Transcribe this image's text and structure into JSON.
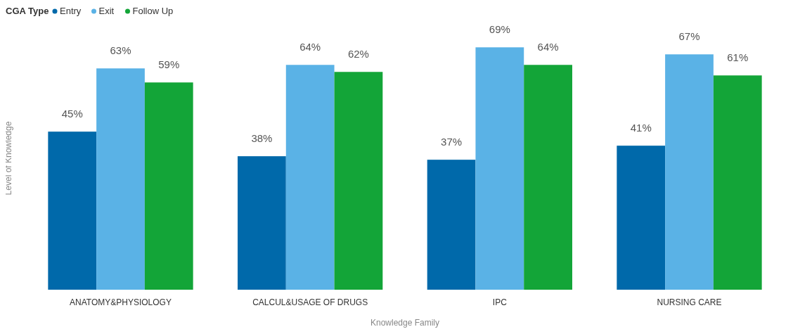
{
  "chart_data": {
    "type": "bar",
    "legend_title": "CGA Type",
    "xlabel": "Knowledge Family",
    "ylabel": "Level of Knowledge",
    "categories": [
      "ANATOMY&PHYSIOLOGY",
      "CALCUL&USAGE OF DRUGS",
      "IPC",
      "NURSING CARE"
    ],
    "series": [
      {
        "name": "Entry",
        "color": "#0069aa",
        "values": [
          45,
          38,
          37,
          41
        ],
        "value_labels": [
          "45%",
          "38%",
          "37%",
          "41%"
        ]
      },
      {
        "name": "Exit",
        "color": "#5ab2e6",
        "values": [
          63,
          64,
          69,
          67
        ],
        "value_labels": [
          "63%",
          "64%",
          "69%",
          "67%"
        ]
      },
      {
        "name": "Follow Up",
        "color": "#13a538",
        "values": [
          59,
          62,
          64,
          61
        ],
        "value_labels": [
          "59%",
          "62%",
          "64%",
          "61%"
        ]
      }
    ],
    "legend": "top left"
  }
}
